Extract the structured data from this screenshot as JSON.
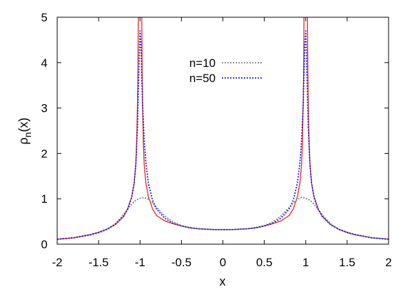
{
  "chart_data": {
    "type": "line",
    "xlabel": "x",
    "ylabel": "ρn(x)",
    "ylabel_parts": {
      "base": "ρ",
      "sub": "n",
      "rest": "(x)"
    },
    "xlim": [
      -2,
      2
    ],
    "ylim": [
      0,
      5
    ],
    "xticks": [
      "-2",
      "-1.5",
      "-1",
      "-0.5",
      "0",
      "0.5",
      "1",
      "1.5",
      "2"
    ],
    "yticks": [
      "0",
      "1",
      "2",
      "3",
      "4",
      "5"
    ],
    "grid": false,
    "legend_position": "top-center",
    "series": [
      {
        "name": "n=10",
        "style": "dotted",
        "color": "#808080",
        "x": [
          -2,
          -1.8,
          -1.6,
          -1.5,
          -1.4,
          -1.3,
          -1.2,
          -1.1,
          -1.05,
          -1.0,
          -0.95,
          -0.9,
          -0.85,
          -0.8,
          -0.7,
          -0.6,
          -0.5,
          -0.4,
          -0.3,
          -0.2,
          -0.1,
          0,
          0.1,
          0.2,
          0.3,
          0.4,
          0.5,
          0.6,
          0.7,
          0.8,
          0.85,
          0.9,
          0.95,
          1.0,
          1.05,
          1.1,
          1.2,
          1.3,
          1.4,
          1.5,
          1.6,
          1.8,
          2
        ],
        "y": [
          0.11,
          0.14,
          0.2,
          0.25,
          0.32,
          0.45,
          0.65,
          0.88,
          0.97,
          1.01,
          1.03,
          0.99,
          0.91,
          0.81,
          0.62,
          0.49,
          0.41,
          0.37,
          0.34,
          0.33,
          0.32,
          0.32,
          0.32,
          0.33,
          0.34,
          0.37,
          0.41,
          0.49,
          0.62,
          0.81,
          0.91,
          0.99,
          1.03,
          1.01,
          0.97,
          0.88,
          0.65,
          0.45,
          0.32,
          0.25,
          0.2,
          0.14,
          0.11
        ]
      },
      {
        "name": "n=50",
        "style": "dotted",
        "color": "#1a1adb",
        "x": [
          -2,
          -1.8,
          -1.6,
          -1.5,
          -1.4,
          -1.3,
          -1.2,
          -1.15,
          -1.1,
          -1.07,
          -1.05,
          -1.03,
          -1.01,
          -1.0,
          -0.99,
          -0.97,
          -0.95,
          -0.93,
          -0.9,
          -0.85,
          -0.8,
          -0.7,
          -0.6,
          -0.5,
          -0.4,
          -0.3,
          -0.2,
          -0.1,
          0,
          0.1,
          0.2,
          0.3,
          0.4,
          0.5,
          0.6,
          0.7,
          0.8,
          0.85,
          0.9,
          0.93,
          0.95,
          0.97,
          0.99,
          1.0,
          1.01,
          1.03,
          1.05,
          1.07,
          1.1,
          1.15,
          1.2,
          1.3,
          1.4,
          1.5,
          1.6,
          1.8,
          2
        ],
        "y": [
          0.11,
          0.14,
          0.21,
          0.26,
          0.33,
          0.43,
          0.61,
          0.77,
          1.03,
          1.35,
          1.75,
          2.6,
          4.1,
          4.7,
          4.4,
          3.1,
          2.3,
          1.8,
          1.35,
          0.97,
          0.77,
          0.57,
          0.46,
          0.4,
          0.36,
          0.34,
          0.33,
          0.32,
          0.32,
          0.32,
          0.33,
          0.34,
          0.36,
          0.4,
          0.46,
          0.57,
          0.77,
          0.97,
          1.35,
          1.8,
          2.3,
          3.1,
          4.4,
          4.7,
          4.1,
          2.6,
          1.75,
          1.35,
          1.03,
          0.77,
          0.61,
          0.43,
          0.33,
          0.26,
          0.21,
          0.14,
          0.11
        ]
      },
      {
        "name": "",
        "style": "solid",
        "color": "#e8221e",
        "x": [
          -2,
          -1.8,
          -1.6,
          -1.5,
          -1.4,
          -1.3,
          -1.2,
          -1.15,
          -1.1,
          -1.07,
          -1.05,
          -1.04,
          -1.03,
          -1.025,
          -1.02,
          -0.98,
          -0.975,
          -0.97,
          -0.96,
          -0.95,
          -0.93,
          -0.9,
          -0.85,
          -0.8,
          -0.7,
          -0.6,
          -0.5,
          -0.4,
          -0.3,
          -0.2,
          -0.1,
          0,
          0.1,
          0.2,
          0.3,
          0.4,
          0.5,
          0.6,
          0.7,
          0.8,
          0.85,
          0.9,
          0.93,
          0.95,
          0.96,
          0.97,
          0.975,
          0.98,
          1.02,
          1.025,
          1.03,
          1.04,
          1.05,
          1.07,
          1.1,
          1.15,
          1.2,
          1.3,
          1.4,
          1.5,
          1.6,
          1.8,
          2
        ],
        "y": [
          0.11,
          0.14,
          0.21,
          0.26,
          0.33,
          0.43,
          0.61,
          0.78,
          1.05,
          1.35,
          1.8,
          2.3,
          3.1,
          3.8,
          5.2,
          5.2,
          3.8,
          3.1,
          2.2,
          1.75,
          1.35,
          1.05,
          0.78,
          0.63,
          0.51,
          0.45,
          0.4,
          0.36,
          0.34,
          0.33,
          0.32,
          0.32,
          0.32,
          0.33,
          0.34,
          0.36,
          0.4,
          0.45,
          0.51,
          0.63,
          0.78,
          1.05,
          1.35,
          1.75,
          2.2,
          3.1,
          3.8,
          5.2,
          5.2,
          3.8,
          3.1,
          2.3,
          1.8,
          1.35,
          1.05,
          0.78,
          0.61,
          0.43,
          0.33,
          0.26,
          0.21,
          0.14,
          0.11
        ]
      }
    ]
  }
}
